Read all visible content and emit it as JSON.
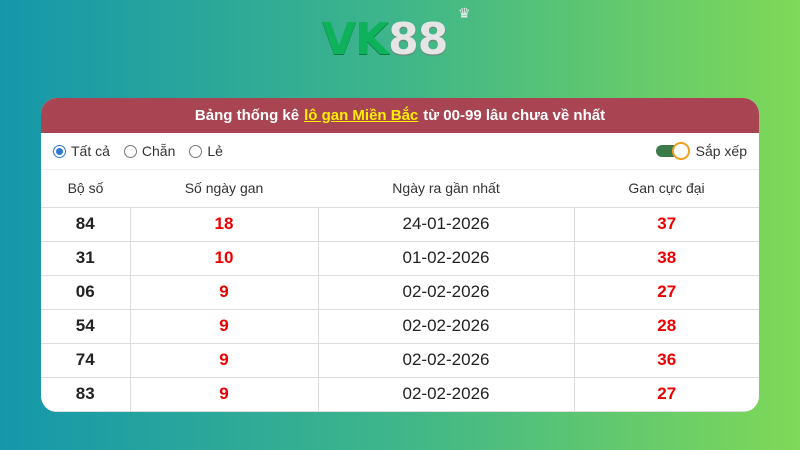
{
  "logo": {
    "text_a": "VK",
    "text_b": "88"
  },
  "header": {
    "prefix": "Bảng thống kê",
    "link": "lô gan Miền Bắc",
    "suffix": "từ 00-99 lâu chưa về nhất"
  },
  "filters": {
    "options": [
      "Tất cả",
      "Chẵn",
      "Lẻ"
    ],
    "selected": "Tất cả",
    "sort_label": "Sắp xếp",
    "sort_on": true
  },
  "colors": {
    "header_bg": "#a94452",
    "link": "#ffef00",
    "highlight": "#e00000"
  },
  "table": {
    "columns": [
      "Bộ số",
      "Số ngày gan",
      "Ngày ra gần nhất",
      "Gan cực đại"
    ],
    "rows": [
      [
        "84",
        "18",
        "24-01-2026",
        "37"
      ],
      [
        "31",
        "10",
        "01-02-2026",
        "38"
      ],
      [
        "06",
        "9",
        "02-02-2026",
        "27"
      ],
      [
        "54",
        "9",
        "02-02-2026",
        "28"
      ],
      [
        "74",
        "9",
        "02-02-2026",
        "36"
      ],
      [
        "83",
        "9",
        "02-02-2026",
        "27"
      ]
    ]
  }
}
